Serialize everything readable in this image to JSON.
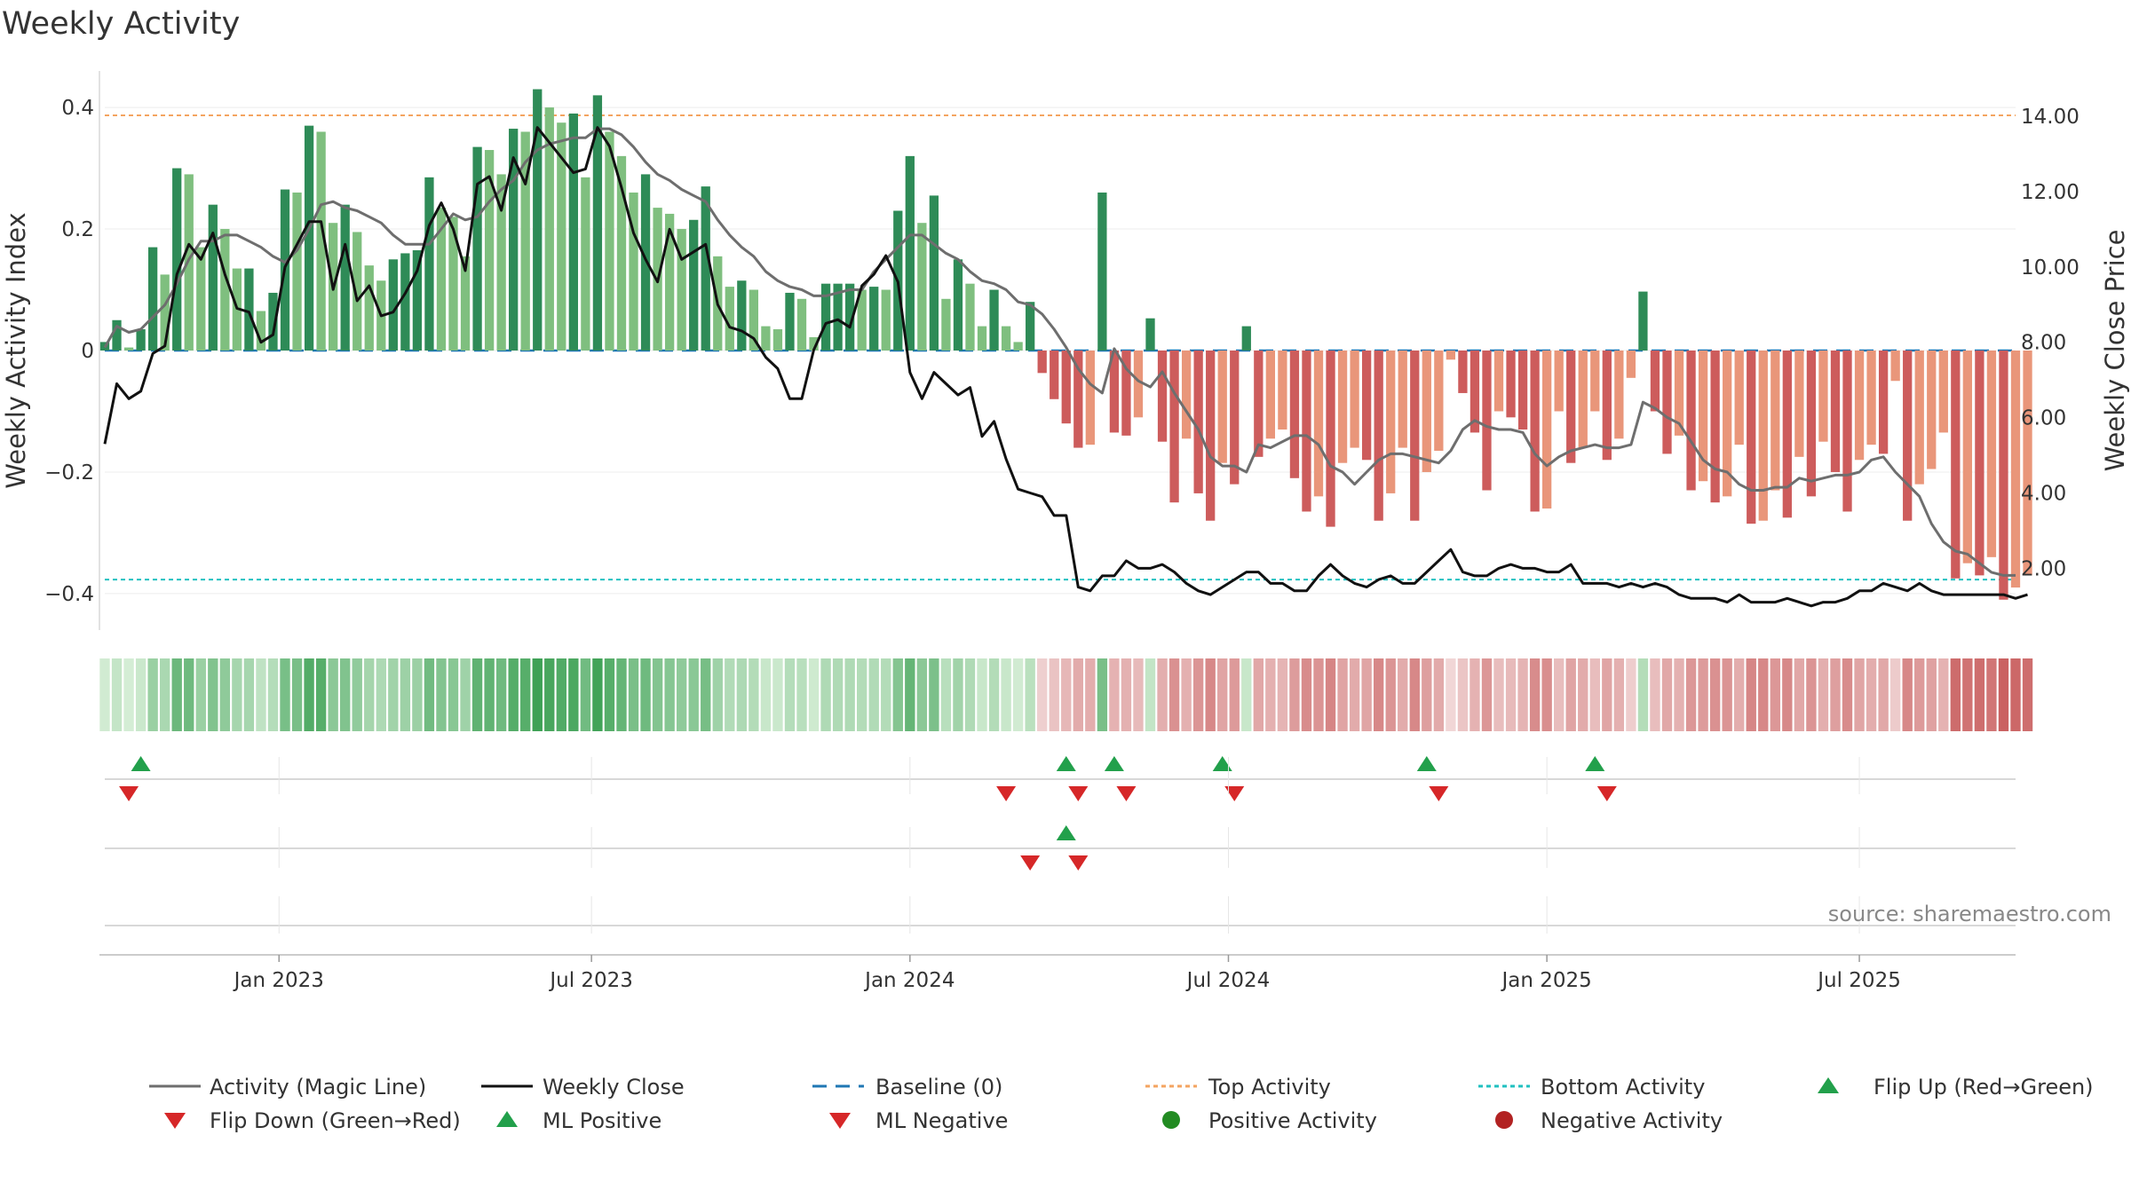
{
  "chart_data": {
    "type": "bar",
    "title": "Weekly Activity",
    "ylabel": "Weekly Activity Index",
    "y2label": "Weekly Close Price",
    "ylim": [
      -0.46,
      0.46
    ],
    "y2lim": [
      0.36,
      15.2
    ],
    "y_ticks": [
      {
        "v": 0.4,
        "label": "0.4"
      },
      {
        "v": 0.2,
        "label": "0.2"
      },
      {
        "v": 0,
        "label": "0"
      },
      {
        "v": -0.2,
        "label": "−0.2"
      },
      {
        "v": -0.4,
        "label": "−0.4"
      }
    ],
    "y2_ticks": [
      {
        "v": 14,
        "label": "14.00"
      },
      {
        "v": 12,
        "label": "12.00"
      },
      {
        "v": 10,
        "label": "10.00"
      },
      {
        "v": 8,
        "label": "8.00"
      },
      {
        "v": 6,
        "label": "6.00"
      },
      {
        "v": 4,
        "label": "4.00"
      },
      {
        "v": 2,
        "label": "2.00"
      }
    ],
    "x_range_weeks": [
      0,
      159
    ],
    "x_ticks": [
      {
        "week": 14.5,
        "label": "Jan 2023"
      },
      {
        "week": 40.5,
        "label": "Jul 2023"
      },
      {
        "week": 67,
        "label": "Jan 2024"
      },
      {
        "week": 93.5,
        "label": "Jul 2024"
      },
      {
        "week": 120,
        "label": "Jan 2025"
      },
      {
        "week": 146,
        "label": "Jul 2025"
      }
    ],
    "top_activity": 0.387,
    "bottom_activity": -0.377,
    "baseline": 0,
    "activity": [
      0.014,
      0.05,
      0.005,
      0.035,
      0.17,
      0.125,
      0.3,
      0.29,
      0.17,
      0.24,
      0.2,
      0.135,
      0.135,
      0.065,
      0.095,
      0.265,
      0.26,
      0.37,
      0.36,
      0.21,
      0.24,
      0.195,
      0.14,
      0.115,
      0.15,
      0.16,
      0.165,
      0.285,
      0.235,
      0.22,
      0.155,
      0.335,
      0.33,
      0.29,
      0.365,
      0.36,
      0.43,
      0.4,
      0.375,
      0.39,
      0.285,
      0.42,
      0.36,
      0.32,
      0.26,
      0.29,
      0.235,
      0.225,
      0.2,
      0.215,
      0.27,
      0.155,
      0.105,
      0.115,
      0.1,
      0.04,
      0.035,
      0.095,
      0.085,
      0.022,
      0.11,
      0.11,
      0.11,
      0.1,
      0.105,
      0.1,
      0.23,
      0.32,
      0.21,
      0.255,
      0.085,
      0.15,
      0.11,
      0.04,
      0.1,
      0.04,
      0.014,
      0.08,
      -0.037,
      -0.08,
      -0.12,
      -0.16,
      -0.155,
      0.26,
      -0.135,
      -0.14,
      -0.11,
      0.053,
      -0.15,
      -0.25,
      -0.145,
      -0.235,
      -0.28,
      -0.185,
      -0.22,
      0.04,
      -0.175,
      -0.145,
      -0.13,
      -0.21,
      -0.265,
      -0.24,
      -0.29,
      -0.185,
      -0.16,
      -0.18,
      -0.28,
      -0.235,
      -0.16,
      -0.28,
      -0.2,
      -0.165,
      -0.015,
      -0.07,
      -0.135,
      -0.23,
      -0.1,
      -0.11,
      -0.13,
      -0.265,
      -0.26,
      -0.1,
      -0.185,
      -0.16,
      -0.1,
      -0.18,
      -0.145,
      -0.045,
      0.097,
      -0.1,
      -0.17,
      -0.14,
      -0.23,
      -0.215,
      -0.25,
      -0.24,
      -0.155,
      -0.285,
      -0.28,
      -0.23,
      -0.275,
      -0.175,
      -0.24,
      -0.15,
      -0.2,
      -0.265,
      -0.18,
      -0.155,
      -0.17,
      -0.05,
      -0.28,
      -0.22,
      -0.195,
      -0.135,
      -0.375,
      -0.35,
      -0.37,
      -0.34,
      -0.41,
      -0.39,
      -0.37
    ],
    "magic_line": [
      0.005,
      0.04,
      0.03,
      0.035,
      0.055,
      0.075,
      0.11,
      0.15,
      0.18,
      0.18,
      0.19,
      0.19,
      0.18,
      0.17,
      0.155,
      0.145,
      0.165,
      0.2,
      0.24,
      0.245,
      0.235,
      0.23,
      0.22,
      0.21,
      0.19,
      0.175,
      0.175,
      0.175,
      0.2,
      0.225,
      0.215,
      0.22,
      0.245,
      0.265,
      0.28,
      0.31,
      0.33,
      0.34,
      0.345,
      0.35,
      0.35,
      0.365,
      0.365,
      0.355,
      0.335,
      0.31,
      0.29,
      0.28,
      0.265,
      0.255,
      0.245,
      0.215,
      0.19,
      0.17,
      0.155,
      0.13,
      0.115,
      0.105,
      0.1,
      0.09,
      0.09,
      0.095,
      0.1,
      0.1,
      0.13,
      0.15,
      0.17,
      0.19,
      0.19,
      0.175,
      0.16,
      0.15,
      0.13,
      0.115,
      0.11,
      0.1,
      0.08,
      0.075,
      0.06,
      0.035,
      0.005,
      -0.03,
      -0.055,
      -0.07,
      0.003,
      -0.03,
      -0.05,
      -0.06,
      -0.035,
      -0.07,
      -0.1,
      -0.13,
      -0.175,
      -0.19,
      -0.19,
      -0.2,
      -0.155,
      -0.16,
      -0.15,
      -0.14,
      -0.14,
      -0.155,
      -0.19,
      -0.2,
      -0.22,
      -0.2,
      -0.18,
      -0.17,
      -0.17,
      -0.175,
      -0.18,
      -0.185,
      -0.165,
      -0.13,
      -0.115,
      -0.125,
      -0.13,
      -0.13,
      -0.135,
      -0.17,
      -0.19,
      -0.175,
      -0.165,
      -0.16,
      -0.155,
      -0.16,
      -0.16,
      -0.155,
      -0.085,
      -0.095,
      -0.11,
      -0.12,
      -0.15,
      -0.18,
      -0.195,
      -0.2,
      -0.22,
      -0.23,
      -0.23,
      -0.225,
      -0.225,
      -0.21,
      -0.215,
      -0.21,
      -0.205,
      -0.205,
      -0.2,
      -0.18,
      -0.175,
      -0.2,
      -0.22,
      -0.24,
      -0.285,
      -0.315,
      -0.33,
      -0.335,
      -0.35,
      -0.365,
      -0.37,
      -0.37
    ],
    "weekly_close": [
      5.3,
      6.9,
      6.5,
      6.7,
      7.7,
      7.9,
      9.8,
      10.6,
      10.2,
      10.9,
      9.8,
      8.9,
      8.8,
      8.0,
      8.2,
      10.0,
      10.6,
      11.2,
      11.2,
      9.4,
      10.6,
      9.1,
      9.5,
      8.7,
      8.8,
      9.3,
      9.9,
      11.1,
      11.7,
      11.0,
      9.9,
      12.2,
      12.4,
      11.5,
      12.9,
      12.2,
      13.7,
      13.3,
      12.9,
      12.5,
      12.6,
      13.7,
      13.2,
      12.1,
      10.9,
      10.2,
      9.6,
      11.0,
      10.2,
      10.4,
      10.6,
      9.0,
      8.4,
      8.3,
      8.1,
      7.6,
      7.3,
      6.5,
      6.5,
      7.8,
      8.5,
      8.6,
      8.4,
      9.5,
      9.8,
      10.3,
      9.6,
      7.2,
      6.5,
      7.2,
      6.9,
      6.6,
      6.8,
      5.5,
      5.9,
      4.9,
      4.1,
      4.0,
      3.9,
      3.4,
      3.4,
      1.5,
      1.4,
      1.8,
      1.8,
      2.2,
      2.0,
      2.0,
      2.1,
      1.9,
      1.6,
      1.4,
      1.3,
      1.5,
      1.7,
      1.9,
      1.9,
      1.6,
      1.6,
      1.4,
      1.4,
      1.8,
      2.1,
      1.8,
      1.6,
      1.5,
      1.7,
      1.8,
      1.6,
      1.6,
      1.9,
      2.2,
      2.5,
      1.9,
      1.8,
      1.8,
      2.0,
      2.1,
      2.0,
      2.0,
      1.9,
      1.9,
      2.1,
      1.6,
      1.6,
      1.6,
      1.5,
      1.6,
      1.5,
      1.6,
      1.5,
      1.3,
      1.2,
      1.2,
      1.2,
      1.1,
      1.3,
      1.1,
      1.1,
      1.1,
      1.2,
      1.1,
      1.0,
      1.1,
      1.1,
      1.2,
      1.4,
      1.4,
      1.6,
      1.5,
      1.4,
      1.6,
      1.4,
      1.3,
      1.3,
      1.3,
      1.3,
      1.3,
      1.3,
      1.2,
      1.3
    ],
    "flip_up_weeks": [
      3,
      80,
      84,
      93,
      110,
      124
    ],
    "flip_down_weeks": [
      2,
      75,
      81,
      85,
      94,
      111,
      125
    ],
    "ml_positive_weeks": [
      80
    ],
    "ml_negative_weeks": [
      77,
      81
    ],
    "source": "source: sharemaestro.com",
    "legend": {
      "magic_line": "Activity (Magic Line)",
      "weekly_close": "Weekly Close",
      "baseline": "Baseline (0)",
      "top": "Top Activity",
      "bottom": "Bottom Activity",
      "flip_up": "Flip Up (Red→Green)",
      "flip_down": "Flip Down (Green→Red)",
      "ml_positive": "ML Positive",
      "ml_negative": "ML Negative",
      "positive": "Positive Activity",
      "negative": "Negative Activity"
    },
    "colors": {
      "pos_dark": "#2e8b57",
      "pos_light": "#7fbf7f",
      "neg_dark": "#cd5c5c",
      "neg_light": "#e9967a",
      "magic_line": "#6e6e6e",
      "close_line": "#111111",
      "baseline": "#1f77b4",
      "top": "#f4a460",
      "bottom": "#20c0c0",
      "flip_up": "#22a04b",
      "flip_down": "#d62728",
      "positive_dot": "#228b22",
      "negative_dot": "#b22222"
    }
  }
}
